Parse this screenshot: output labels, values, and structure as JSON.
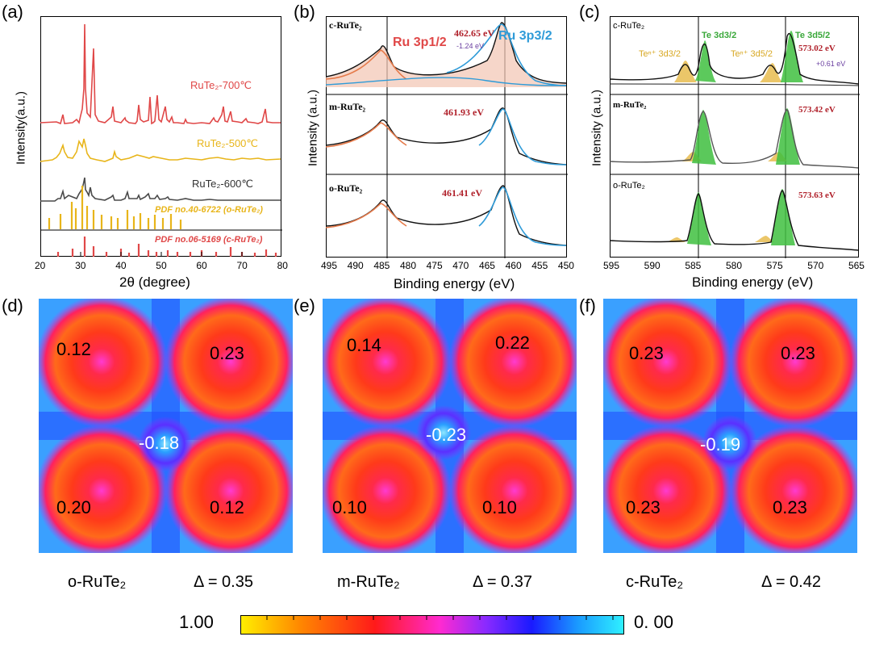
{
  "panel_labels": [
    "(a)",
    "(b)",
    "(c)",
    "(d)",
    "(e)",
    "(f)"
  ],
  "panel_a": {
    "ylabel": "Intensity(a.u.)",
    "xlabel": "2θ (degree)",
    "xticks": [
      "20",
      "30",
      "40",
      "50",
      "60",
      "70",
      "80"
    ],
    "series_labels": [
      "RuTe₂-700℃",
      "RuTe₂-500℃",
      "RuTe₂-600℃"
    ],
    "pdf_labels": [
      "PDF no.40-6722 (o-RuTe₂)",
      "PDF no.06-5169 (c-RuTe₂)"
    ],
    "colors": {
      "red": "#e04848",
      "yellow": "#e8b51a",
      "gray": "#4a4a4a"
    }
  },
  "panel_b": {
    "ylabel": "Intensity (a.u.)",
    "xlabel": "Binding energy (eV)",
    "xticks": [
      "495",
      "490",
      "485",
      "480",
      "475",
      "470",
      "465",
      "460",
      "455",
      "450"
    ],
    "rows": [
      {
        "sample": "c-RuTe₂",
        "peak": "462.65 eV",
        "shift": "-1.24 eV"
      },
      {
        "sample": "m-RuTe₂",
        "peak": "461.93 eV"
      },
      {
        "sample": "o-RuTe₂",
        "peak": "461.41 eV"
      }
    ],
    "ru_half": "Ru 3p1/2",
    "ru_three_half": "Ru 3p3/2"
  },
  "panel_c": {
    "ylabel": "Intensity (a.u.)",
    "xlabel": "Binding energy (eV)",
    "xticks": [
      "595",
      "590",
      "585",
      "580",
      "575",
      "570",
      "565"
    ],
    "rows": [
      {
        "sample": "c-RuTe₂",
        "peak": "573.02 eV",
        "shift": "+0.61 eV"
      },
      {
        "sample": "m-RuTe₂",
        "peak": "573.42 eV"
      },
      {
        "sample": "o-RuTe₂",
        "peak": "573.63 eV"
      }
    ],
    "te_labels": [
      "Teⁿ⁺ 3d3/2",
      "Te 3d3/2",
      "Teⁿ⁺ 3d5/2",
      "Te 3d5/2"
    ]
  },
  "maps": [
    {
      "values": [
        "0.12",
        "0.23",
        "-0.18",
        "0.20",
        "0.12"
      ],
      "name": "o-RuTe₂",
      "delta": "Δ = 0.35"
    },
    {
      "values": [
        "0.14",
        "0.22",
        "-0.23",
        "0.10",
        "0.10"
      ],
      "name": "m-RuTe₂",
      "delta": "Δ = 0.37"
    },
    {
      "values": [
        "0.23",
        "0.23",
        "-0.19",
        "0.23",
        "0.23"
      ],
      "name": "c-RuTe₂",
      "delta": "Δ = 0.42"
    }
  ],
  "colorbar": {
    "left": "1.00",
    "right": "0. 00"
  }
}
